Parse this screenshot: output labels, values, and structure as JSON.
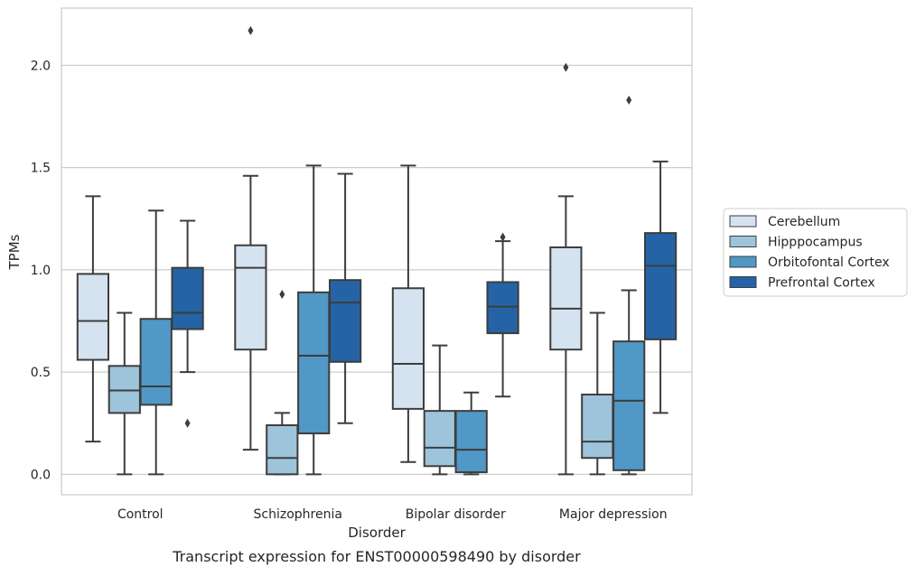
{
  "chart_data": {
    "type": "boxplot",
    "caption": "Transcript expression for ENST00000598490 by disorder",
    "xlabel": "Disorder",
    "ylabel": "TPMs",
    "ylim": [
      -0.1,
      2.28
    ],
    "yticks": [
      0.0,
      0.5,
      1.0,
      1.5,
      2.0
    ],
    "ytick_labels": [
      "0.0",
      "0.5",
      "1.0",
      "1.5",
      "2.0"
    ],
    "grid": "horizontal",
    "legend_position": "right",
    "categories": [
      "Control",
      "Schizophrenia",
      "Bipolar disorder",
      "Major depression"
    ],
    "series": [
      {
        "name": "Cerebellum",
        "color": "#d5e3f0",
        "boxes": [
          {
            "whisker_low": 0.16,
            "q1": 0.56,
            "median": 0.75,
            "q3": 0.98,
            "whisker_high": 1.36,
            "outliers": []
          },
          {
            "whisker_low": 0.12,
            "q1": 0.61,
            "median": 1.01,
            "q3": 1.12,
            "whisker_high": 1.46,
            "outliers": [
              2.17
            ]
          },
          {
            "whisker_low": 0.06,
            "q1": 0.32,
            "median": 0.54,
            "q3": 0.91,
            "whisker_high": 1.51,
            "outliers": []
          },
          {
            "whisker_low": 0.0,
            "q1": 0.61,
            "median": 0.81,
            "q3": 1.11,
            "whisker_high": 1.36,
            "outliers": [
              1.99
            ]
          }
        ]
      },
      {
        "name": "Hipppocampus",
        "color": "#9ec4dc",
        "boxes": [
          {
            "whisker_low": 0.0,
            "q1": 0.3,
            "median": 0.41,
            "q3": 0.53,
            "whisker_high": 0.79,
            "outliers": []
          },
          {
            "whisker_low": 0.0,
            "q1": 0.0,
            "median": 0.08,
            "q3": 0.24,
            "whisker_high": 0.3,
            "outliers": [
              0.88
            ]
          },
          {
            "whisker_low": 0.0,
            "q1": 0.04,
            "median": 0.13,
            "q3": 0.31,
            "whisker_high": 0.63,
            "outliers": []
          },
          {
            "whisker_low": 0.0,
            "q1": 0.08,
            "median": 0.16,
            "q3": 0.39,
            "whisker_high": 0.79,
            "outliers": []
          }
        ]
      },
      {
        "name": "Orbitofontal Cortex",
        "color": "#5098c6",
        "boxes": [
          {
            "whisker_low": 0.0,
            "q1": 0.34,
            "median": 0.43,
            "q3": 0.76,
            "whisker_high": 1.29,
            "outliers": []
          },
          {
            "whisker_low": 0.0,
            "q1": 0.2,
            "median": 0.58,
            "q3": 0.89,
            "whisker_high": 1.51,
            "outliers": []
          },
          {
            "whisker_low": 0.0,
            "q1": 0.01,
            "median": 0.12,
            "q3": 0.31,
            "whisker_high": 0.4,
            "outliers": []
          },
          {
            "whisker_low": 0.0,
            "q1": 0.02,
            "median": 0.36,
            "q3": 0.65,
            "whisker_high": 0.9,
            "outliers": [
              1.83
            ]
          }
        ]
      },
      {
        "name": "Prefrontal Cortex",
        "color": "#2464a6",
        "boxes": [
          {
            "whisker_low": 0.5,
            "q1": 0.71,
            "median": 0.79,
            "q3": 1.01,
            "whisker_high": 1.24,
            "outliers": [
              0.25
            ]
          },
          {
            "whisker_low": 0.25,
            "q1": 0.55,
            "median": 0.84,
            "q3": 0.95,
            "whisker_high": 1.47,
            "outliers": []
          },
          {
            "whisker_low": 0.38,
            "q1": 0.69,
            "median": 0.82,
            "q3": 0.94,
            "whisker_high": 1.14,
            "outliers": [
              1.16
            ]
          },
          {
            "whisker_low": 0.3,
            "q1": 0.66,
            "median": 1.02,
            "q3": 1.18,
            "whisker_high": 1.53,
            "outliers": []
          }
        ]
      }
    ]
  }
}
